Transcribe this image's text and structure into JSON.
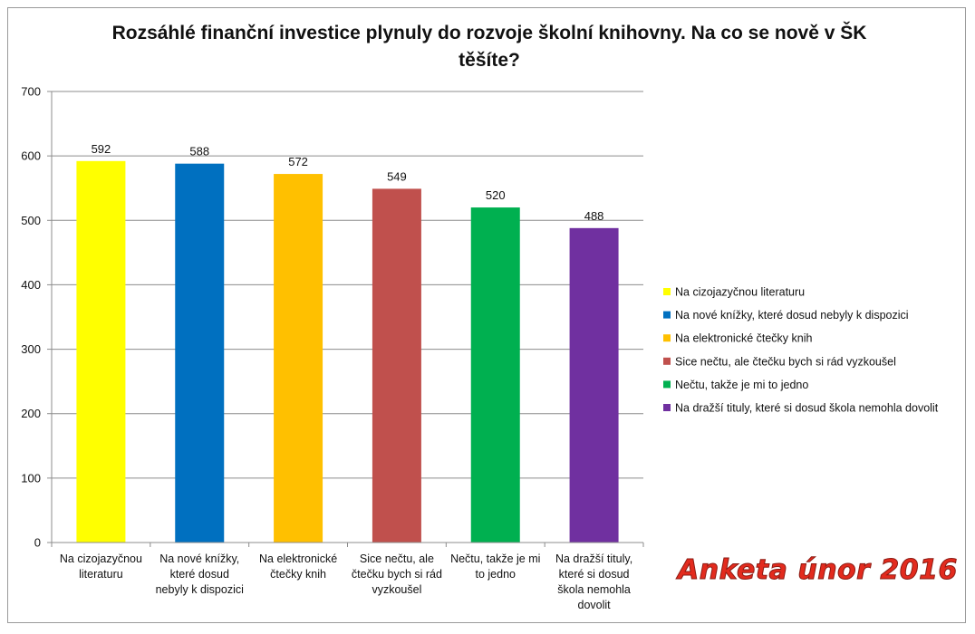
{
  "chart_data": {
    "type": "bar",
    "title": "Rozsáhlé finanční investice plynuly do rozvoje školní knihovny. Na co se nově v ŠK těšíte?",
    "categories": [
      "Na cizojazyčnou literaturu",
      "Na nové knížky, které dosud nebyly k dispozici",
      "Na elektronické čtečky knih",
      "Sice nečtu, ale čtečku bych si rád vyzkoušel",
      "Nečtu, takže je mi to jedno",
      "Na dražší tituly, které si dosud škola nemohla dovolit"
    ],
    "category_label_lines": [
      [
        "Na cizojazyčnou",
        "literaturu"
      ],
      [
        "Na nové knížky,",
        "které dosud",
        "nebyly k dispozici"
      ],
      [
        "Na elektronické",
        "čtečky knih"
      ],
      [
        "Sice nečtu, ale",
        "čtečku bych si rád",
        "vyzkoušel"
      ],
      [
        "Nečtu, takže je mi",
        "to jedno"
      ],
      [
        "Na dražší tituly,",
        "které si dosud",
        "škola nemohla",
        "dovolit"
      ]
    ],
    "values": [
      592,
      588,
      572,
      549,
      520,
      488
    ],
    "colors": [
      "#ffff00",
      "#0070c0",
      "#ffc000",
      "#c0504d",
      "#00b050",
      "#7030a0"
    ],
    "ylim": [
      0,
      700
    ],
    "yticks": [
      0,
      100,
      200,
      300,
      400,
      500,
      600,
      700
    ],
    "xlabel": "",
    "ylabel": "",
    "grid": true,
    "legend_position": "right",
    "legend": [
      "Na cizojazyčnou literaturu",
      "Na nové knížky, které dosud nebyly k dispozici",
      "Na elektronické čtečky knih",
      "Sice nečtu, ale čtečku bych si rád vyzkoušel",
      "Nečtu, takže je mi to jedno",
      "Na dražší tituly, které si dosud škola nemohla dovolit"
    ]
  },
  "annotation": "Anketa únor 2016",
  "annotation_color": "#e32b1e"
}
